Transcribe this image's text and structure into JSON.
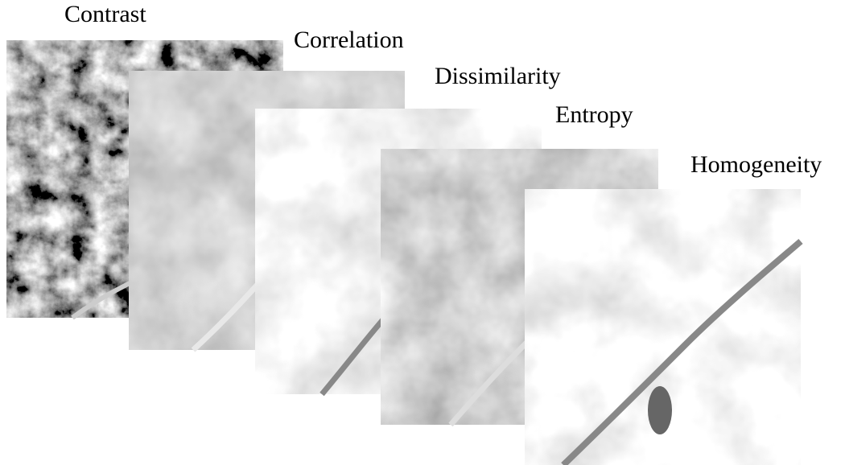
{
  "panels": [
    {
      "label": "Contrast"
    },
    {
      "label": "Correlation"
    },
    {
      "label": "Dissimilarity"
    },
    {
      "label": "Entropy"
    },
    {
      "label": "Homogeneity"
    }
  ]
}
